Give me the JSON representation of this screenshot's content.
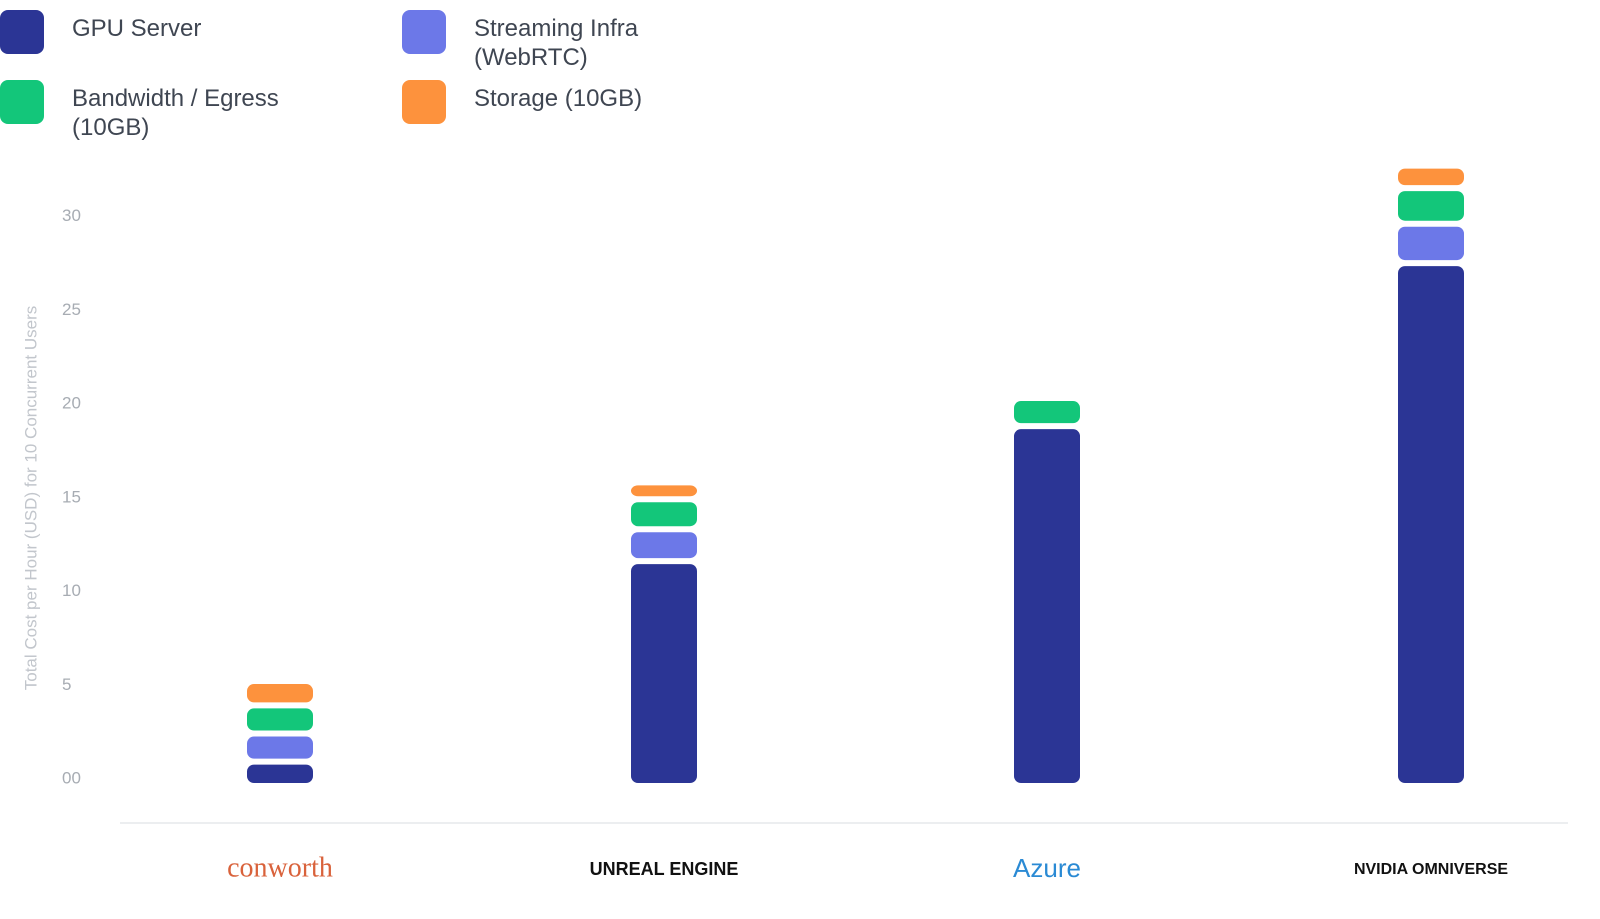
{
  "chart_data": {
    "type": "stacked_bar",
    "y_label": "Total Cost per Hour (USD) for 10 Concurrent Users",
    "categories": [
      "conworth",
      "UNREAL ENGINE",
      "Azure",
      "NVIDIA OMNIVERSE"
    ],
    "series": [
      {
        "name": "GPU Server",
        "color": "#2b3595",
        "values": [
          1.3,
          12,
          19.2,
          27.9
        ]
      },
      {
        "name": "Streaming Infra (WebRTC)",
        "color": "#6c78e8",
        "values": [
          1.5,
          1.7,
          0,
          2.1
        ]
      },
      {
        "name": "Bandwidth / Egress (10GB)",
        "color": "#13c67a",
        "values": [
          1.5,
          1.6,
          1.5,
          1.9
        ]
      },
      {
        "name": "Storage (10GB)",
        "color": "#fd923d",
        "values": [
          1.3,
          0.9,
          0,
          1.2
        ]
      }
    ],
    "ylim": [
      0,
      33.4
    ],
    "yticks": [
      {
        "value": 0,
        "label": "00"
      },
      5,
      10,
      15,
      20,
      25,
      30
    ],
    "legend": "top-left"
  }
}
